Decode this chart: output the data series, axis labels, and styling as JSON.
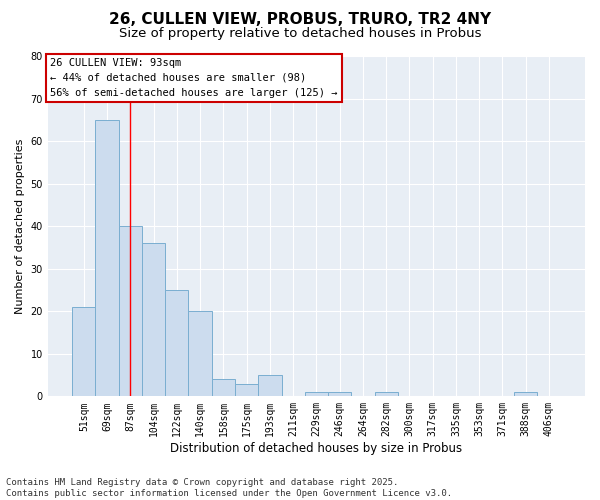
{
  "title": "26, CULLEN VIEW, PROBUS, TRURO, TR2 4NY",
  "subtitle": "Size of property relative to detached houses in Probus",
  "xlabel": "Distribution of detached houses by size in Probus",
  "ylabel": "Number of detached properties",
  "categories": [
    "51sqm",
    "69sqm",
    "87sqm",
    "104sqm",
    "122sqm",
    "140sqm",
    "158sqm",
    "175sqm",
    "193sqm",
    "211sqm",
    "229sqm",
    "246sqm",
    "264sqm",
    "282sqm",
    "300sqm",
    "317sqm",
    "335sqm",
    "353sqm",
    "371sqm",
    "388sqm",
    "406sqm"
  ],
  "values": [
    21,
    65,
    40,
    36,
    25,
    20,
    4,
    3,
    5,
    0,
    1,
    1,
    0,
    1,
    0,
    0,
    0,
    0,
    0,
    1,
    0
  ],
  "bar_color": "#ccdcee",
  "bar_edge_color": "#7aaed0",
  "red_line_index": 2,
  "ylim": [
    0,
    80
  ],
  "yticks": [
    0,
    10,
    20,
    30,
    40,
    50,
    60,
    70,
    80
  ],
  "annotation_title": "26 CULLEN VIEW: 93sqm",
  "annotation_line1": "← 44% of detached houses are smaller (98)",
  "annotation_line2": "56% of semi-detached houses are larger (125) →",
  "annotation_box_facecolor": "#ffffff",
  "annotation_box_edgecolor": "#cc0000",
  "footer_line1": "Contains HM Land Registry data © Crown copyright and database right 2025.",
  "footer_line2": "Contains public sector information licensed under the Open Government Licence v3.0.",
  "figure_facecolor": "#ffffff",
  "axes_facecolor": "#e8eef5",
  "grid_color": "#ffffff",
  "title_fontsize": 11,
  "subtitle_fontsize": 9.5,
  "tick_fontsize": 7,
  "ylabel_fontsize": 8,
  "xlabel_fontsize": 8.5,
  "footer_fontsize": 6.5,
  "annotation_fontsize": 7.5
}
